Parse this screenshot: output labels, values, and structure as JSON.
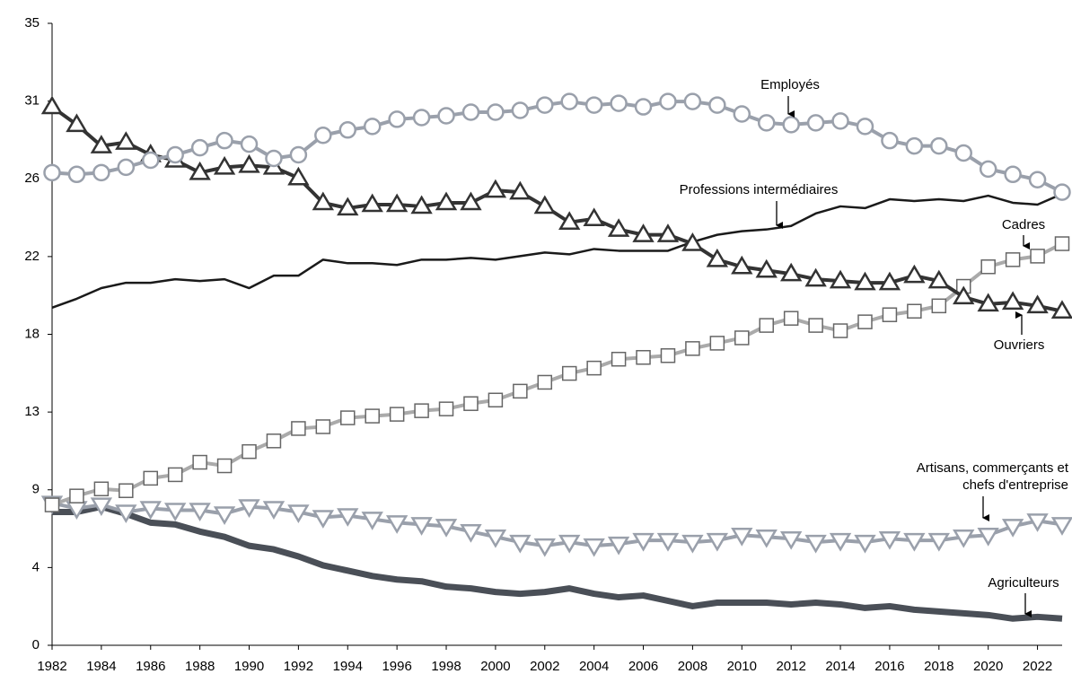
{
  "chart_data": {
    "type": "line",
    "x": [
      1982,
      1983,
      1984,
      1985,
      1986,
      1987,
      1988,
      1989,
      1990,
      1991,
      1992,
      1993,
      1994,
      1995,
      1996,
      1997,
      1998,
      1999,
      2000,
      2001,
      2002,
      2003,
      2004,
      2005,
      2006,
      2007,
      2008,
      2009,
      2010,
      2011,
      2012,
      2013,
      2014,
      2015,
      2016,
      2017,
      2018,
      2019,
      2020,
      2021,
      2022,
      2023
    ],
    "xlim": [
      1982,
      2023
    ],
    "xticks": [
      1982,
      1984,
      1986,
      1988,
      1990,
      1992,
      1994,
      1996,
      1998,
      2000,
      2002,
      2004,
      2006,
      2008,
      2010,
      2012,
      2014,
      2016,
      2018,
      2020,
      2022
    ],
    "ylim": [
      0,
      35
    ],
    "yticks": [
      0,
      {
        "value": 4.375,
        "label": "4"
      },
      {
        "value": 8.75,
        "label": "9"
      },
      {
        "value": 13.125,
        "label": "13"
      },
      {
        "value": 17.5,
        "label": "18"
      },
      {
        "value": 21.875,
        "label": "22"
      },
      {
        "value": 26.25,
        "label": "26"
      },
      {
        "value": 30.625,
        "label": "31"
      },
      35
    ],
    "grid": false,
    "series": [
      {
        "name": "Professions intermédiaires",
        "color": "#1a1a1a",
        "marker": "none",
        "values": [
          19.0,
          19.5,
          20.1,
          20.4,
          20.4,
          20.6,
          20.5,
          20.6,
          20.1,
          20.8,
          20.8,
          21.7,
          21.5,
          21.5,
          21.4,
          21.7,
          21.7,
          21.8,
          21.7,
          21.9,
          22.1,
          22.0,
          22.3,
          22.2,
          22.2,
          22.2,
          22.7,
          23.1,
          23.3,
          23.4,
          23.6,
          24.3,
          24.7,
          24.6,
          25.1,
          25.0,
          25.1,
          25.0,
          25.3,
          24.9,
          24.8,
          25.4
        ]
      },
      {
        "name": "Agriculteurs",
        "color": "#4a4f57",
        "marker": "none",
        "values": [
          7.5,
          7.5,
          7.8,
          7.4,
          6.9,
          6.8,
          6.4,
          6.1,
          5.6,
          5.4,
          5.0,
          4.5,
          4.2,
          3.9,
          3.7,
          3.6,
          3.3,
          3.2,
          3.0,
          2.9,
          3.0,
          3.2,
          2.9,
          2.7,
          2.8,
          2.5,
          2.2,
          2.4,
          2.4,
          2.4,
          2.3,
          2.4,
          2.3,
          2.1,
          2.2,
          2.0,
          1.9,
          1.8,
          1.7,
          1.5,
          1.6,
          1.5
        ]
      },
      {
        "name": "Artisans, commerçants et chefs d'entreprise",
        "color": "#9aa0ab",
        "marker": "triangle-down",
        "values": [
          8.0,
          7.7,
          7.9,
          7.5,
          7.7,
          7.6,
          7.6,
          7.4,
          7.8,
          7.7,
          7.5,
          7.2,
          7.3,
          7.1,
          6.9,
          6.8,
          6.7,
          6.4,
          6.1,
          5.8,
          5.6,
          5.8,
          5.6,
          5.7,
          5.9,
          5.9,
          5.8,
          5.9,
          6.2,
          6.1,
          6.0,
          5.8,
          5.9,
          5.8,
          6.0,
          5.9,
          5.9,
          6.1,
          6.2,
          6.7,
          7.0,
          6.8
        ]
      },
      {
        "name": "Cadres",
        "color": "#aaaaaa",
        "marker": "square",
        "values": [
          7.9,
          8.4,
          8.8,
          8.7,
          9.4,
          9.6,
          10.3,
          10.1,
          10.9,
          11.5,
          12.2,
          12.3,
          12.8,
          12.9,
          13.0,
          13.2,
          13.3,
          13.6,
          13.8,
          14.3,
          14.8,
          15.3,
          15.6,
          16.1,
          16.2,
          16.3,
          16.7,
          17.0,
          17.3,
          18.0,
          18.4,
          18.0,
          17.7,
          18.2,
          18.6,
          18.8,
          19.1,
          20.2,
          21.3,
          21.7,
          21.9,
          22.6
        ]
      },
      {
        "name": "Ouvriers",
        "color": "#333333",
        "marker": "triangle-up",
        "values": [
          30.3,
          29.3,
          28.1,
          28.3,
          27.6,
          27.3,
          26.6,
          26.9,
          27.0,
          26.9,
          26.3,
          24.9,
          24.6,
          24.8,
          24.8,
          24.7,
          24.9,
          24.9,
          25.6,
          25.5,
          24.7,
          23.8,
          24.0,
          23.4,
          23.1,
          23.1,
          22.6,
          21.7,
          21.3,
          21.1,
          20.9,
          20.6,
          20.5,
          20.4,
          20.4,
          20.8,
          20.5,
          19.6,
          19.2,
          19.3,
          19.1,
          18.8
        ]
      },
      {
        "name": "Employés",
        "color": "#9aa0ab",
        "marker": "circle",
        "values": [
          26.6,
          26.5,
          26.6,
          26.9,
          27.3,
          27.6,
          28.0,
          28.4,
          28.2,
          27.4,
          27.6,
          28.7,
          29.0,
          29.2,
          29.6,
          29.7,
          29.8,
          30.0,
          30.0,
          30.1,
          30.4,
          30.6,
          30.4,
          30.5,
          30.3,
          30.6,
          30.6,
          30.4,
          29.9,
          29.4,
          29.3,
          29.4,
          29.5,
          29.2,
          28.4,
          28.1,
          28.1,
          27.7,
          26.8,
          26.5,
          26.2,
          25.5
        ]
      }
    ],
    "annotations": [
      {
        "text": [
          "Professions intermédiaires"
        ]
      },
      {
        "text": [
          "Agriculteurs"
        ]
      },
      {
        "text": [
          "Artisans, commerçants et",
          "chefs d'entreprise"
        ]
      },
      {
        "text": [
          "Cadres"
        ]
      },
      {
        "text": [
          "Ouvriers"
        ]
      },
      {
        "text": [
          "Employés"
        ]
      }
    ]
  }
}
